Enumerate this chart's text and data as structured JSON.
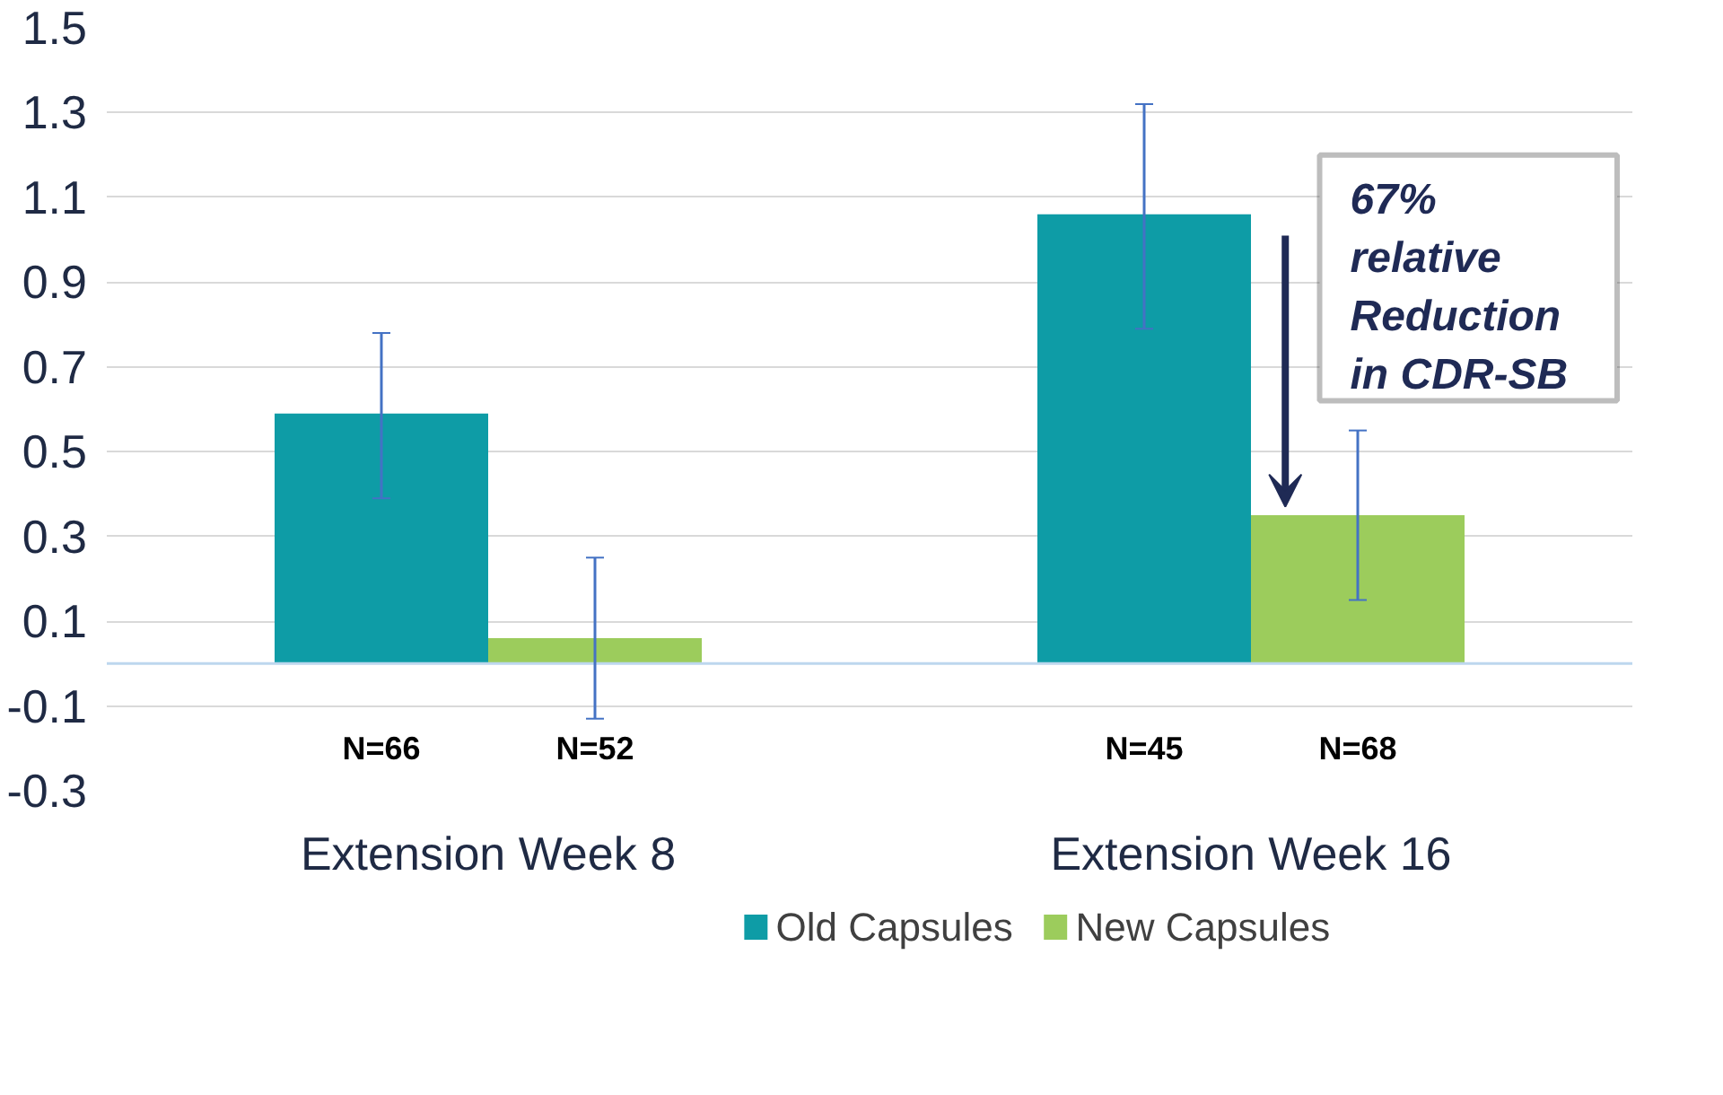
{
  "chart_data": {
    "type": "bar",
    "categories": [
      "Extension Week 8",
      "Extension Week 16"
    ],
    "series": [
      {
        "name": "Old Capsules",
        "color": "#0e9ca6",
        "values": [
          0.59,
          1.06
        ],
        "errors": [
          [
            0.39,
            0.78
          ],
          [
            0.79,
            1.32
          ]
        ]
      },
      {
        "name": "New Capsules",
        "color": "#9ccc5c",
        "values": [
          0.06,
          0.35
        ],
        "errors": [
          [
            -0.13,
            0.25
          ],
          [
            0.15,
            0.55
          ]
        ]
      }
    ],
    "ylim": [
      -0.3,
      1.5
    ],
    "yticks": [
      -0.3,
      -0.1,
      0.1,
      0.3,
      0.5,
      0.7,
      0.9,
      1.1,
      1.3,
      1.5
    ],
    "grid": "y",
    "legend": "bottom",
    "ref_lines": [
      {
        "axis": "y",
        "value": 0,
        "color": "#bdd7ee"
      }
    ],
    "annotations": [
      "N=66",
      "N=52",
      "N=45",
      "N=68",
      "67%\nrelative\nReduction\nin CDR-SB"
    ]
  }
}
